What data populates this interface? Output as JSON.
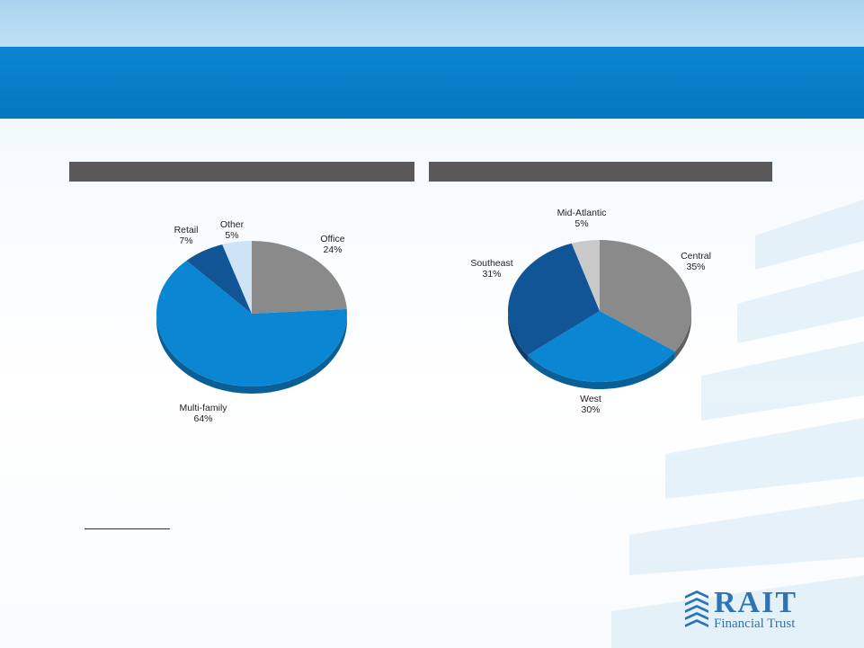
{
  "slide": {
    "colors": {
      "top_strip": "#b5daf2",
      "title_band": "#0a7fc8",
      "section_header": "#5a5859"
    }
  },
  "logo": {
    "word": "RAIT",
    "subtitle": "Financial Trust",
    "color": "#2d73b5"
  },
  "chart_data": [
    {
      "type": "pie",
      "slices": [
        {
          "label": "Office",
          "value": 24,
          "display": "24%",
          "color": "#8a8a8a",
          "side": "#5f5f5f"
        },
        {
          "label": "Multi-family",
          "value": 64,
          "display": "64%",
          "color": "#0a86d2",
          "side": "#0a5f96"
        },
        {
          "label": "Retail",
          "value": 7,
          "display": "7%",
          "color": "#125596",
          "side": "#0c3d6e"
        },
        {
          "label": "Other",
          "value": 5,
          "display": "5%",
          "color": "#cfe3f7",
          "side": "#9fb6cc"
        }
      ]
    },
    {
      "type": "pie",
      "slices": [
        {
          "label": "Central",
          "value": 35,
          "display": "35%",
          "color": "#8a8a8a",
          "side": "#5f5f5f"
        },
        {
          "label": "West",
          "value": 30,
          "display": "30%",
          "color": "#0a86d2",
          "side": "#0a5f96"
        },
        {
          "label": "Southeast",
          "value": 31,
          "display": "31%",
          "color": "#125596",
          "side": "#0c3d6e"
        },
        {
          "label": "Mid-Atlantic",
          "value": 5,
          "display": "5%",
          "color": "#c9c9c9",
          "side": "#8f8f8f"
        }
      ]
    }
  ]
}
